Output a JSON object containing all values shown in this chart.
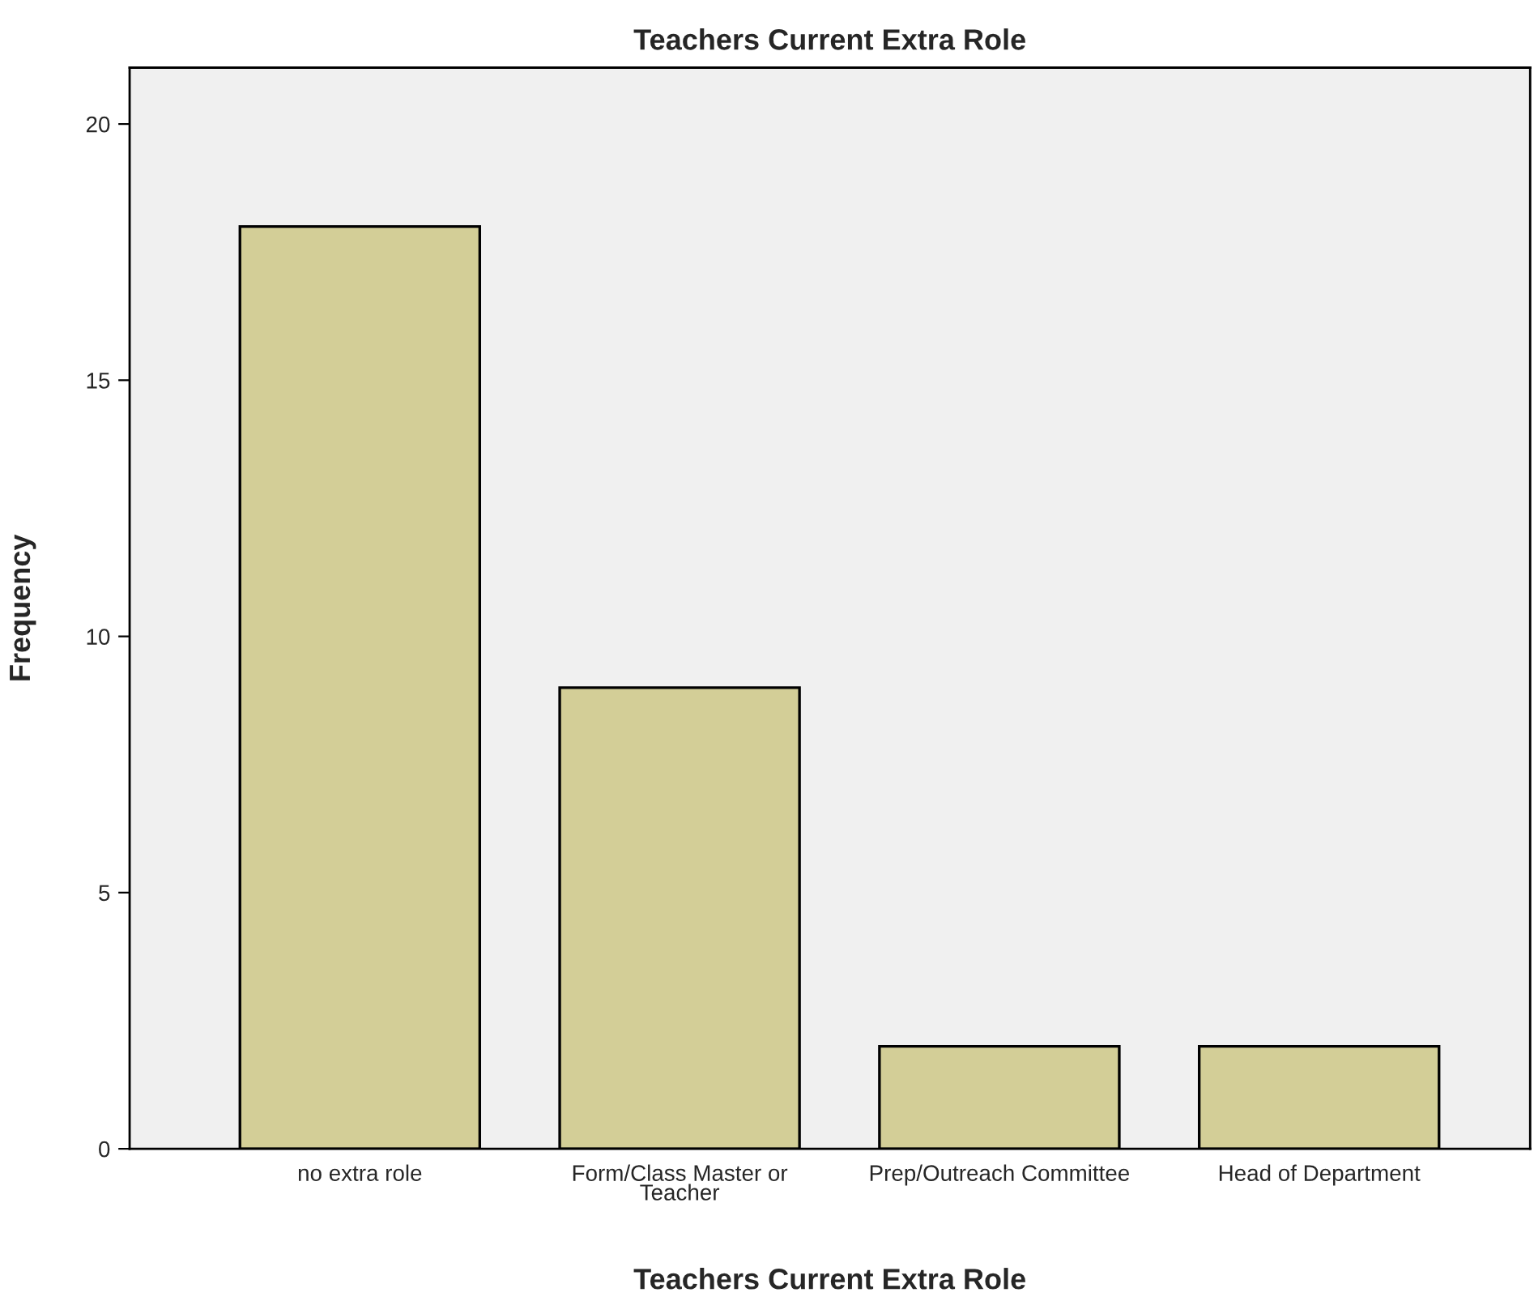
{
  "chart_data": {
    "type": "bar",
    "title": "Teachers Current Extra Role",
    "xlabel": "Teachers Current Extra Role",
    "ylabel": "Frequency",
    "categories": [
      "no extra role",
      "Form/Class Master or\nTeacher",
      "Prep/Outreach Committee",
      "Head of Department"
    ],
    "values": [
      18,
      9,
      2,
      2
    ],
    "color": "#d3ce97",
    "ylim": [
      0,
      21.1
    ],
    "yticks": [
      0,
      5,
      10,
      15,
      20
    ],
    "grid": false
  }
}
